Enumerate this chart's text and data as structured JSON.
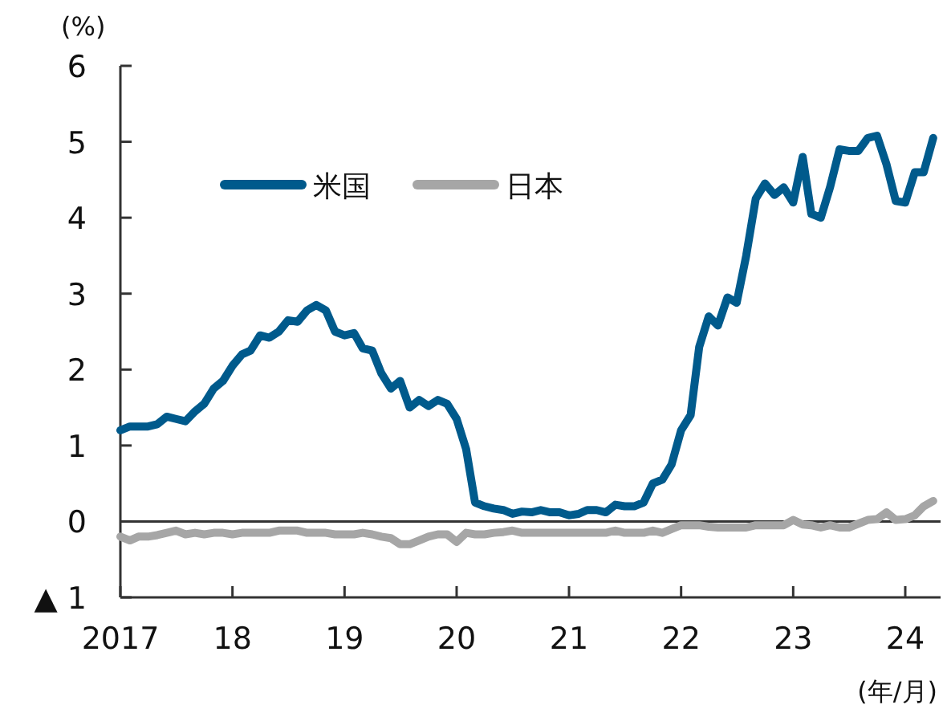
{
  "chart_data": {
    "type": "line",
    "ylabel": "(%)",
    "xlabel": "(年/月)",
    "x": [
      "2017-01",
      "2017-02",
      "2017-03",
      "2017-04",
      "2017-05",
      "2017-06",
      "2017-07",
      "2017-08",
      "2017-09",
      "2017-10",
      "2017-11",
      "2017-12",
      "2018-01",
      "2018-02",
      "2018-03",
      "2018-04",
      "2018-05",
      "2018-06",
      "2018-07",
      "2018-08",
      "2018-09",
      "2018-10",
      "2018-11",
      "2018-12",
      "2019-01",
      "2019-02",
      "2019-03",
      "2019-04",
      "2019-05",
      "2019-06",
      "2019-07",
      "2019-08",
      "2019-09",
      "2019-10",
      "2019-11",
      "2019-12",
      "2020-01",
      "2020-02",
      "2020-03",
      "2020-04",
      "2020-05",
      "2020-06",
      "2020-07",
      "2020-08",
      "2020-09",
      "2020-10",
      "2020-11",
      "2020-12",
      "2021-01",
      "2021-02",
      "2021-03",
      "2021-04",
      "2021-05",
      "2021-06",
      "2021-07",
      "2021-08",
      "2021-09",
      "2021-10",
      "2021-11",
      "2021-12",
      "2022-01",
      "2022-02",
      "2022-03",
      "2022-04",
      "2022-05",
      "2022-06",
      "2022-07",
      "2022-08",
      "2022-09",
      "2022-10",
      "2022-11",
      "2022-12",
      "2023-01",
      "2023-02",
      "2023-03",
      "2023-04",
      "2023-05",
      "2023-06",
      "2023-07",
      "2023-08",
      "2023-09",
      "2023-10",
      "2023-11",
      "2023-12",
      "2024-01",
      "2024-02",
      "2024-03",
      "2024-04"
    ],
    "series": [
      {
        "name": "米国",
        "color": "#005a8c",
        "values": [
          1.2,
          1.25,
          1.25,
          1.25,
          1.28,
          1.38,
          1.35,
          1.32,
          1.45,
          1.55,
          1.75,
          1.85,
          2.05,
          2.2,
          2.25,
          2.45,
          2.42,
          2.5,
          2.65,
          2.63,
          2.78,
          2.85,
          2.78,
          2.5,
          2.45,
          2.48,
          2.28,
          2.25,
          1.95,
          1.75,
          1.85,
          1.5,
          1.6,
          1.52,
          1.6,
          1.55,
          1.35,
          0.95,
          0.25,
          0.2,
          0.17,
          0.15,
          0.1,
          0.13,
          0.12,
          0.15,
          0.12,
          0.12,
          0.08,
          0.1,
          0.15,
          0.15,
          0.12,
          0.22,
          0.2,
          0.2,
          0.25,
          0.5,
          0.55,
          0.75,
          1.2,
          1.4,
          2.3,
          2.7,
          2.58,
          2.95,
          2.88,
          3.5,
          4.25,
          4.45,
          4.3,
          4.4,
          4.2,
          4.8,
          4.05,
          4.0,
          4.4,
          4.9,
          4.88,
          4.88,
          5.05,
          5.08,
          4.7,
          4.22,
          4.2,
          4.6,
          4.6,
          5.05
        ]
      },
      {
        "name": "日本",
        "color": "#a6a6a6",
        "values": [
          -0.2,
          -0.25,
          -0.2,
          -0.2,
          -0.18,
          -0.15,
          -0.12,
          -0.17,
          -0.15,
          -0.17,
          -0.15,
          -0.15,
          -0.17,
          -0.15,
          -0.15,
          -0.15,
          -0.15,
          -0.12,
          -0.12,
          -0.12,
          -0.15,
          -0.15,
          -0.15,
          -0.17,
          -0.17,
          -0.17,
          -0.15,
          -0.17,
          -0.2,
          -0.22,
          -0.3,
          -0.3,
          -0.25,
          -0.2,
          -0.17,
          -0.17,
          -0.27,
          -0.15,
          -0.17,
          -0.17,
          -0.15,
          -0.14,
          -0.12,
          -0.15,
          -0.15,
          -0.15,
          -0.15,
          -0.15,
          -0.15,
          -0.15,
          -0.15,
          -0.15,
          -0.15,
          -0.12,
          -0.15,
          -0.15,
          -0.15,
          -0.12,
          -0.15,
          -0.1,
          -0.05,
          -0.05,
          -0.05,
          -0.07,
          -0.08,
          -0.08,
          -0.08,
          -0.08,
          -0.05,
          -0.05,
          -0.05,
          -0.05,
          0.02,
          -0.04,
          -0.05,
          -0.08,
          -0.05,
          -0.08,
          -0.08,
          -0.03,
          0.02,
          0.03,
          0.12,
          0.02,
          0.03,
          0.08,
          0.2,
          0.27
        ]
      }
    ],
    "xlim": [
      "2017-01-01",
      "2024-04-25"
    ],
    "xticks": [
      {
        "value": "2017-01",
        "label": "2017"
      },
      {
        "value": "2018-01",
        "label": "18"
      },
      {
        "value": "2019-01",
        "label": "19"
      },
      {
        "value": "2020-01",
        "label": "20"
      },
      {
        "value": "2021-01",
        "label": "21"
      },
      {
        "value": "2022-01",
        "label": "22"
      },
      {
        "value": "2023-01",
        "label": "23"
      },
      {
        "value": "2024-01",
        "label": "24"
      }
    ],
    "ylim": [
      -1,
      6
    ],
    "yticks": [
      {
        "value": -1,
        "label": "▲ 1"
      },
      0,
      1,
      2,
      3,
      4,
      5,
      6
    ],
    "ref_lines": [
      {
        "axis": "y",
        "value": 0,
        "color": "#333333"
      }
    ],
    "legend": "top left",
    "grid": false,
    "marker": "none",
    "line_style": "solid"
  }
}
